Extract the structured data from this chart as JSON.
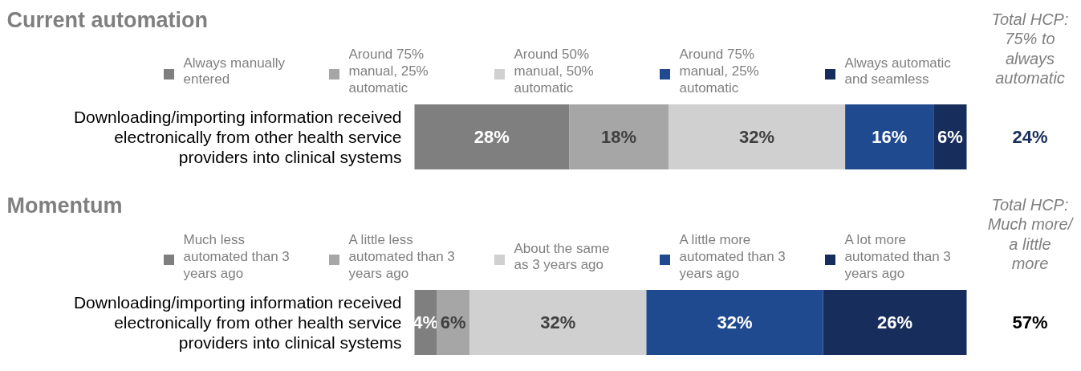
{
  "chart_data": [
    {
      "type": "bar",
      "orientation": "horizontal",
      "stacked": true,
      "title": "Current automation",
      "categories": [
        "Downloading/importing information received electronically from other health service providers into clinical systems"
      ],
      "tick_labels": "y",
      "legend": "top",
      "series": [
        {
          "name": "Always manually entered",
          "color": "#7f7f7f",
          "values": [
            28
          ],
          "value_labels": [
            "28%"
          ]
        },
        {
          "name": "Around 75% manual, 25% automatic",
          "color": "#a6a6a6",
          "values": [
            18
          ],
          "value_labels": [
            "18%"
          ]
        },
        {
          "name": "Around 50% manual, 50% automatic",
          "color": "#d0d0d0",
          "values": [
            32
          ],
          "value_labels": [
            "32%"
          ]
        },
        {
          "name": "Around 75% manual, 25% automatic",
          "color": "#204a8f",
          "values": [
            16
          ],
          "value_labels": [
            "16%"
          ]
        },
        {
          "name": "Always automatic and seamless",
          "color": "#172d5b",
          "values": [
            6
          ],
          "value_labels": [
            "6%"
          ]
        }
      ],
      "annotations": [
        "Total HCP: 75% to always automatic",
        "24%"
      ]
    },
    {
      "type": "bar",
      "orientation": "horizontal",
      "stacked": true,
      "title": "Momentum",
      "categories": [
        "Downloading/importing information received electronically from other health service providers into clinical systems"
      ],
      "tick_labels": "y",
      "legend": "top",
      "series": [
        {
          "name": "Much less automated than 3 years ago",
          "color": "#7f7f7f",
          "values": [
            4
          ],
          "value_labels": [
            "4%"
          ]
        },
        {
          "name": "A little less automated than 3 years ago",
          "color": "#a6a6a6",
          "values": [
            6
          ],
          "value_labels": [
            "6%"
          ]
        },
        {
          "name": "About the same as 3 years ago",
          "color": "#d0d0d0",
          "values": [
            32
          ],
          "value_labels": [
            "32%"
          ]
        },
        {
          "name": "A little more automated than 3 years ago",
          "color": "#204a8f",
          "values": [
            32
          ],
          "value_labels": [
            "32%"
          ]
        },
        {
          "name": "A lot more automated than 3 years ago",
          "color": "#172d5b",
          "values": [
            26
          ],
          "value_labels": [
            "26%"
          ]
        }
      ],
      "annotations": [
        "Total HCP: Much more/ a little more",
        "57%"
      ]
    }
  ]
}
